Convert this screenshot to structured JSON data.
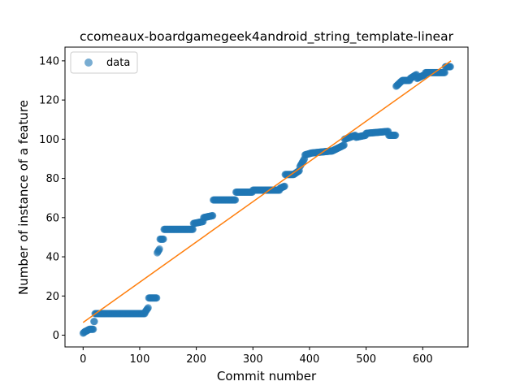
{
  "chart_data": {
    "type": "scatter",
    "title": "ccomeaux-boardgamegeek4android_string_template-linear",
    "xlabel": "Commit number",
    "ylabel": "Number of instance of a feature",
    "xlim": [
      -32,
      680
    ],
    "ylim": [
      -6,
      147
    ],
    "xticks": [
      0,
      100,
      200,
      300,
      400,
      500,
      600
    ],
    "yticks": [
      0,
      20,
      40,
      60,
      80,
      100,
      120,
      140
    ],
    "grid": false,
    "legend_placement": "top-left",
    "colors": {
      "data": "#1f77b4",
      "fit": "#ff7f0e"
    },
    "series": [
      {
        "name": "data",
        "kind": "points",
        "segments": [
          [
            0,
            5,
            1,
            2
          ],
          [
            5,
            12,
            2,
            3
          ],
          [
            12,
            19,
            3,
            3
          ],
          [
            19,
            21,
            7,
            7
          ],
          [
            21,
            110,
            11,
            11
          ],
          [
            110,
            116,
            12,
            14
          ],
          [
            116,
            131,
            19,
            19
          ],
          [
            131,
            136,
            42,
            44
          ],
          [
            136,
            143,
            49,
            49
          ],
          [
            143,
            195,
            54,
            54
          ],
          [
            195,
            213,
            57,
            58
          ],
          [
            213,
            230,
            60,
            61
          ],
          [
            230,
            270,
            69,
            69
          ],
          [
            270,
            300,
            73,
            73
          ],
          [
            300,
            348,
            74,
            74
          ],
          [
            348,
            357,
            75,
            76
          ],
          [
            357,
            372,
            82,
            82
          ],
          [
            372,
            383,
            82,
            84
          ],
          [
            383,
            392,
            86,
            90
          ],
          [
            392,
            405,
            92,
            93
          ],
          [
            405,
            440,
            93,
            94
          ],
          [
            440,
            462,
            94,
            97
          ],
          [
            462,
            482,
            100,
            102
          ],
          [
            482,
            500,
            101,
            102
          ],
          [
            500,
            540,
            103,
            104
          ],
          [
            540,
            553,
            102,
            102
          ],
          [
            553,
            565,
            127,
            130
          ],
          [
            565,
            578,
            130,
            130
          ],
          [
            578,
            590,
            131,
            133
          ],
          [
            590,
            605,
            131,
            133
          ],
          [
            605,
            640,
            134,
            134
          ],
          [
            640,
            650,
            137,
            137
          ]
        ]
      },
      {
        "name": "",
        "kind": "line",
        "x": [
          0,
          650
        ],
        "y": [
          6.5,
          140
        ]
      }
    ],
    "legend": [
      "data"
    ]
  }
}
